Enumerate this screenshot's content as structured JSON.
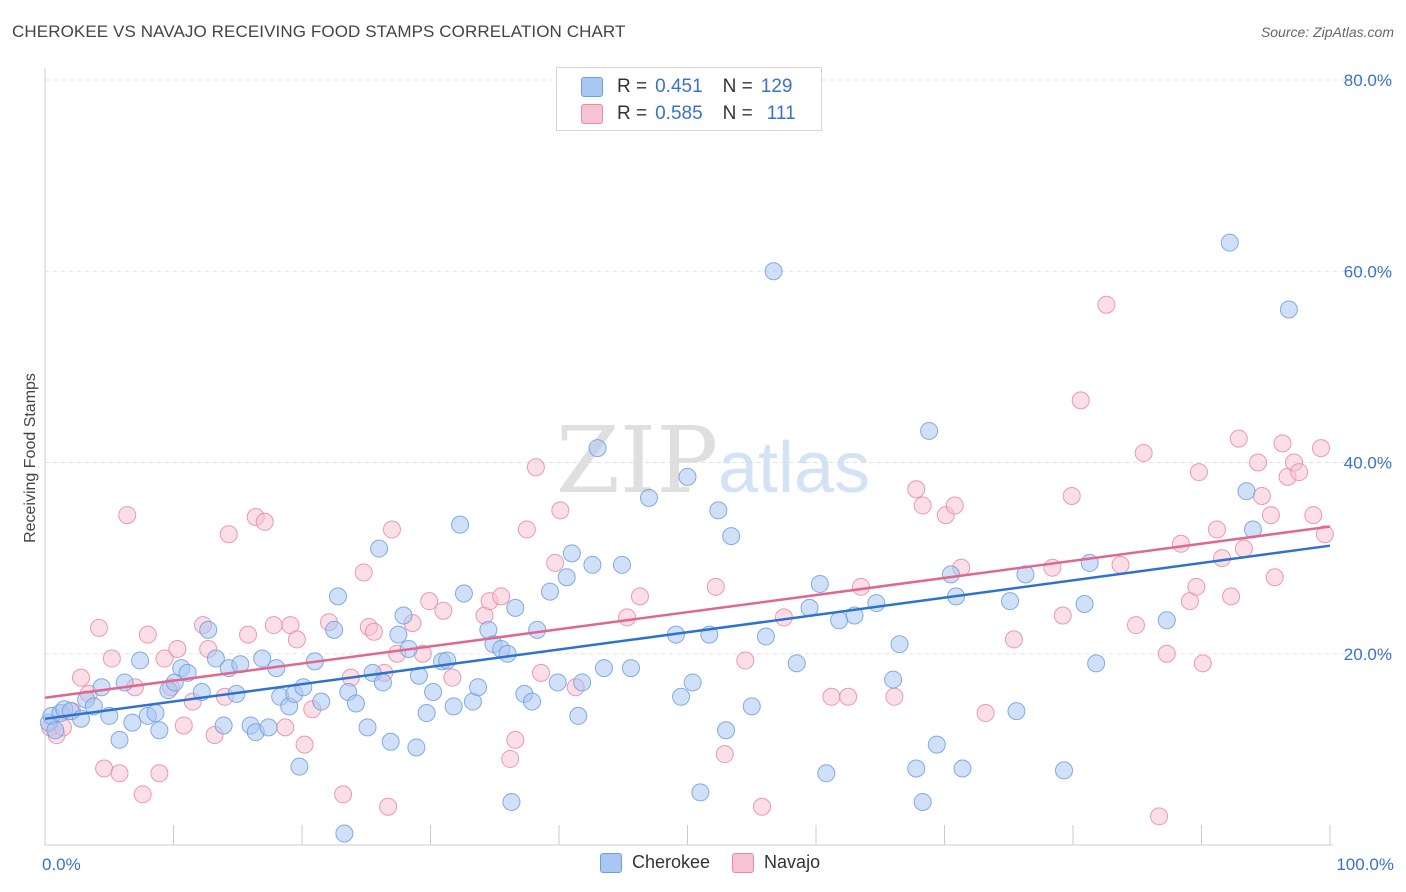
{
  "header": {
    "title": "CHEROKEE VS NAVAJO RECEIVING FOOD STAMPS CORRELATION CHART",
    "source": "Source: ZipAtlas.com"
  },
  "watermark": {
    "zip": "ZIP",
    "atlas": "atlas"
  },
  "legend": {
    "rows": [
      {
        "r_label": "R =",
        "r_value": "0.451",
        "n_label": "N =",
        "n_value": "129",
        "color": "#a9c7f2",
        "border": "#6f9fdf"
      },
      {
        "r_label": "R =",
        "r_value": "0.585",
        "n_label": "N =",
        "n_value": "111",
        "color": "#f7c2d2",
        "border": "#e88aa8"
      }
    ]
  },
  "bottom_legend": [
    {
      "label": "Cherokee",
      "color": "#a9c7f2",
      "border": "#6f9fdf"
    },
    {
      "label": "Navajo",
      "color": "#f7c2d2",
      "border": "#e88aa8"
    }
  ],
  "chart_data": {
    "type": "scatter",
    "title": "CHEROKEE VS NAVAJO RECEIVING FOOD STAMPS CORRELATION CHART",
    "xlabel": "",
    "ylabel": "Receiving Food Stamps",
    "xlim": [
      0,
      100
    ],
    "ylim": [
      0,
      80
    ],
    "x_tick_labels": [
      "0.0%",
      "100.0%"
    ],
    "y_ticks": [
      20,
      40,
      60,
      80
    ],
    "y_tick_labels": [
      "20.0%",
      "40.0%",
      "60.0%",
      "80.0%"
    ],
    "grid": "horizontal dashed",
    "legend_position": "top-center",
    "series": [
      {
        "name": "Cherokee",
        "color": "#a9c7f2",
        "line_color": "#2e72d0",
        "trend": {
          "x": [
            0,
            100
          ],
          "y": [
            13.2,
            31.3
          ]
        },
        "points": [
          [
            0.3,
            12.8
          ],
          [
            0.5,
            13.5
          ],
          [
            0.8,
            12.0
          ],
          [
            1.2,
            13.8
          ],
          [
            1.5,
            14.2
          ],
          [
            2,
            14.0
          ],
          [
            2.8,
            13.2
          ],
          [
            3.2,
            15.2
          ],
          [
            3.8,
            14.5
          ],
          [
            4.4,
            16.5
          ],
          [
            5,
            13.5
          ],
          [
            5.8,
            11.0
          ],
          [
            6.2,
            17.0
          ],
          [
            6.8,
            12.8
          ],
          [
            7.4,
            19.3
          ],
          [
            8,
            13.5
          ],
          [
            8.6,
            13.8
          ],
          [
            8.9,
            12.0
          ],
          [
            9.6,
            16.2
          ],
          [
            10.1,
            17.0
          ],
          [
            10.6,
            18.5
          ],
          [
            11.1,
            18.0
          ],
          [
            12.2,
            16.0
          ],
          [
            12.7,
            22.5
          ],
          [
            13.3,
            19.5
          ],
          [
            13.9,
            12.5
          ],
          [
            14.3,
            18.5
          ],
          [
            14.9,
            15.8
          ],
          [
            15.2,
            18.9
          ],
          [
            16,
            12.5
          ],
          [
            16.4,
            11.8
          ],
          [
            16.9,
            19.5
          ],
          [
            17.4,
            12.3
          ],
          [
            18,
            18.5
          ],
          [
            18.3,
            15.5
          ],
          [
            19,
            14.5
          ],
          [
            19.4,
            15.8
          ],
          [
            19.8,
            8.2
          ],
          [
            20.1,
            16.5
          ],
          [
            21,
            19.2
          ],
          [
            21.5,
            15.0
          ],
          [
            22.5,
            22.5
          ],
          [
            22.8,
            26.0
          ],
          [
            23.3,
            1.2
          ],
          [
            23.6,
            16.0
          ],
          [
            24.2,
            14.8
          ],
          [
            25.1,
            12.3
          ],
          [
            25.5,
            18.0
          ],
          [
            26,
            31.0
          ],
          [
            26.3,
            17.0
          ],
          [
            26.9,
            10.8
          ],
          [
            27.5,
            22.0
          ],
          [
            27.9,
            24.0
          ],
          [
            28.3,
            20.5
          ],
          [
            28.9,
            10.2
          ],
          [
            29.1,
            17.7
          ],
          [
            29.7,
            13.8
          ],
          [
            30.2,
            16.0
          ],
          [
            30.9,
            19.2
          ],
          [
            31.3,
            19.3
          ],
          [
            31.8,
            14.5
          ],
          [
            32.3,
            33.5
          ],
          [
            32.6,
            26.3
          ],
          [
            33.3,
            15.0
          ],
          [
            33.7,
            16.5
          ],
          [
            34.5,
            22.5
          ],
          [
            34.9,
            21.0
          ],
          [
            35.5,
            20.5
          ],
          [
            36,
            20.0
          ],
          [
            36.3,
            4.5
          ],
          [
            36.6,
            24.8
          ],
          [
            37.3,
            15.8
          ],
          [
            37.9,
            15.0
          ],
          [
            38.3,
            22.5
          ],
          [
            39.3,
            26.5
          ],
          [
            39.9,
            17.0
          ],
          [
            40.6,
            28.0
          ],
          [
            41,
            30.5
          ],
          [
            41.5,
            13.5
          ],
          [
            41.8,
            17.0
          ],
          [
            42.6,
            29.3
          ],
          [
            43,
            41.5
          ],
          [
            43.5,
            18.5
          ],
          [
            44.9,
            29.3
          ],
          [
            45.6,
            18.5
          ],
          [
            47,
            36.3
          ],
          [
            49.1,
            22.0
          ],
          [
            49.5,
            15.5
          ],
          [
            50,
            38.5
          ],
          [
            50.4,
            17.0
          ],
          [
            51,
            5.5
          ],
          [
            51.7,
            22.0
          ],
          [
            52.4,
            35.0
          ],
          [
            53,
            12.0
          ],
          [
            53.4,
            32.3
          ],
          [
            55,
            14.5
          ],
          [
            56.1,
            21.8
          ],
          [
            56.7,
            60.0
          ],
          [
            58.5,
            19.0
          ],
          [
            59.5,
            24.8
          ],
          [
            60.3,
            27.3
          ],
          [
            60.8,
            7.5
          ],
          [
            61.8,
            23.5
          ],
          [
            63,
            24.0
          ],
          [
            64.7,
            25.3
          ],
          [
            66,
            17.3
          ],
          [
            66.5,
            21.0
          ],
          [
            67.8,
            8.0
          ],
          [
            68.3,
            4.5
          ],
          [
            68.8,
            43.3
          ],
          [
            69.4,
            10.5
          ],
          [
            70.5,
            28.3
          ],
          [
            70.9,
            26.0
          ],
          [
            71.4,
            8.0
          ],
          [
            75.1,
            25.5
          ],
          [
            75.6,
            14.0
          ],
          [
            76.3,
            28.3
          ],
          [
            79.3,
            7.8
          ],
          [
            80.9,
            25.2
          ],
          [
            81.3,
            29.5
          ],
          [
            81.8,
            19.0
          ],
          [
            87.3,
            23.5
          ],
          [
            92.2,
            63.0
          ],
          [
            93.5,
            37.0
          ],
          [
            94,
            33.0
          ],
          [
            96.8,
            56.0
          ]
        ]
      },
      {
        "name": "Navajo",
        "color": "#f7c2d2",
        "line_color": "#e0688f",
        "trend": {
          "x": [
            0,
            100
          ],
          "y": [
            15.4,
            33.3
          ]
        },
        "points": [
          [
            0.4,
            12.3
          ],
          [
            0.9,
            11.5
          ],
          [
            1.4,
            12.3
          ],
          [
            2.1,
            14.0
          ],
          [
            2.8,
            17.5
          ],
          [
            3.4,
            15.8
          ],
          [
            4.2,
            22.7
          ],
          [
            4.6,
            8.0
          ],
          [
            5.2,
            19.5
          ],
          [
            5.8,
            7.5
          ],
          [
            6.4,
            34.5
          ],
          [
            7,
            16.5
          ],
          [
            7.6,
            5.3
          ],
          [
            8,
            22.0
          ],
          [
            8.9,
            7.5
          ],
          [
            9.3,
            19.5
          ],
          [
            9.8,
            16.5
          ],
          [
            10.3,
            20.5
          ],
          [
            10.8,
            12.5
          ],
          [
            11.5,
            15.0
          ],
          [
            12.3,
            23.0
          ],
          [
            12.7,
            20.5
          ],
          [
            13.2,
            11.5
          ],
          [
            14,
            15.5
          ],
          [
            14.3,
            32.5
          ],
          [
            15.8,
            22.0
          ],
          [
            16.4,
            34.3
          ],
          [
            17.1,
            33.8
          ],
          [
            17.8,
            23.0
          ],
          [
            18.7,
            12.3
          ],
          [
            19.1,
            23.0
          ],
          [
            19.6,
            21.5
          ],
          [
            20.2,
            10.5
          ],
          [
            20.8,
            14.2
          ],
          [
            22.1,
            23.3
          ],
          [
            23.2,
            5.3
          ],
          [
            23.8,
            17.5
          ],
          [
            24.8,
            28.5
          ],
          [
            25.2,
            22.8
          ],
          [
            25.6,
            22.3
          ],
          [
            26.4,
            18.0
          ],
          [
            26.7,
            4.0
          ],
          [
            27,
            33.0
          ],
          [
            27.4,
            20.0
          ],
          [
            28.6,
            23.2
          ],
          [
            29.4,
            20.0
          ],
          [
            29.9,
            25.5
          ],
          [
            31,
            24.5
          ],
          [
            31.7,
            17.5
          ],
          [
            34.2,
            24.0
          ],
          [
            34.6,
            25.5
          ],
          [
            35.5,
            26.0
          ],
          [
            36.2,
            9.0
          ],
          [
            36.6,
            11.0
          ],
          [
            37.5,
            33.0
          ],
          [
            38.2,
            39.5
          ],
          [
            38.6,
            18.0
          ],
          [
            39.7,
            29.5
          ],
          [
            40.1,
            35.0
          ],
          [
            41.3,
            16.5
          ],
          [
            45.3,
            23.8
          ],
          [
            46.3,
            26.0
          ],
          [
            52.2,
            27.0
          ],
          [
            52.9,
            9.5
          ],
          [
            54.5,
            19.3
          ],
          [
            55.8,
            4.0
          ],
          [
            57.5,
            23.8
          ],
          [
            61.2,
            15.5
          ],
          [
            62.5,
            15.5
          ],
          [
            63.5,
            27.0
          ],
          [
            66.1,
            15.5
          ],
          [
            67.8,
            37.2
          ],
          [
            68.3,
            35.5
          ],
          [
            70.1,
            34.5
          ],
          [
            70.8,
            35.5
          ],
          [
            71.3,
            29.0
          ],
          [
            73.2,
            13.8
          ],
          [
            75.4,
            21.5
          ],
          [
            78.4,
            29.0
          ],
          [
            79.2,
            24.0
          ],
          [
            79.9,
            36.5
          ],
          [
            80.6,
            46.5
          ],
          [
            82.6,
            56.5
          ],
          [
            83.7,
            29.3
          ],
          [
            84.9,
            23.0
          ],
          [
            85.5,
            41.0
          ],
          [
            86.7,
            3.0
          ],
          [
            87.3,
            20.0
          ],
          [
            88.4,
            31.5
          ],
          [
            89.1,
            25.5
          ],
          [
            89.6,
            27.0
          ],
          [
            89.8,
            39.0
          ],
          [
            90.1,
            19.0
          ],
          [
            91.2,
            33.0
          ],
          [
            91.6,
            30.0
          ],
          [
            92.3,
            26.0
          ],
          [
            92.9,
            42.5
          ],
          [
            93.3,
            31.0
          ],
          [
            94.4,
            40.0
          ],
          [
            94.7,
            36.5
          ],
          [
            95.4,
            34.5
          ],
          [
            95.7,
            28.0
          ],
          [
            96.3,
            42.0
          ],
          [
            96.7,
            38.5
          ],
          [
            97.2,
            40.0
          ],
          [
            97.6,
            39.0
          ],
          [
            98.7,
            34.5
          ],
          [
            99.3,
            41.5
          ],
          [
            99.6,
            32.5
          ]
        ]
      }
    ]
  }
}
